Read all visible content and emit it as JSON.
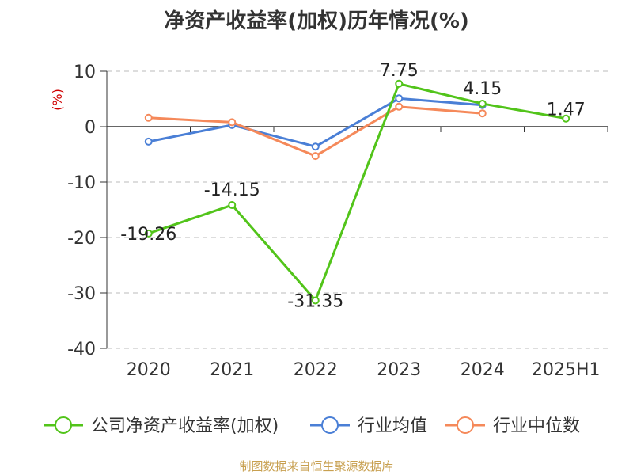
{
  "title": "净资产收益率(加权)历年情况(%)",
  "source": "制图数据来自恒生聚源数据库",
  "chart_data": {
    "type": "line",
    "title": "净资产收益率(加权)历年情况(%)",
    "ylabel": "(%)",
    "xlabel": "",
    "categories": [
      "2020",
      "2021",
      "2022",
      "2023",
      "2024",
      "2025H1"
    ],
    "ylim": [
      -40,
      10
    ],
    "yticks": [
      10,
      0,
      -10,
      -20,
      -30,
      -40
    ],
    "grid": "horizontal-dashed",
    "legend_position": "bottom",
    "series": [
      {
        "name": "公司净资产收益率(加权)",
        "color": "#52c41a",
        "values": [
          -19.26,
          -14.15,
          -31.35,
          7.75,
          4.15,
          1.47
        ],
        "labels": [
          "-19.26",
          "-14.15",
          "-31.35",
          "7.75",
          "4.15",
          "1.47"
        ]
      },
      {
        "name": "行业均值",
        "color": "#4a7fd6",
        "values": [
          -2.7,
          0.3,
          -3.6,
          5.1,
          3.9,
          null
        ]
      },
      {
        "name": "行业中位数",
        "color": "#f5895a",
        "values": [
          1.6,
          0.8,
          -5.3,
          3.6,
          2.4,
          null
        ]
      }
    ]
  }
}
